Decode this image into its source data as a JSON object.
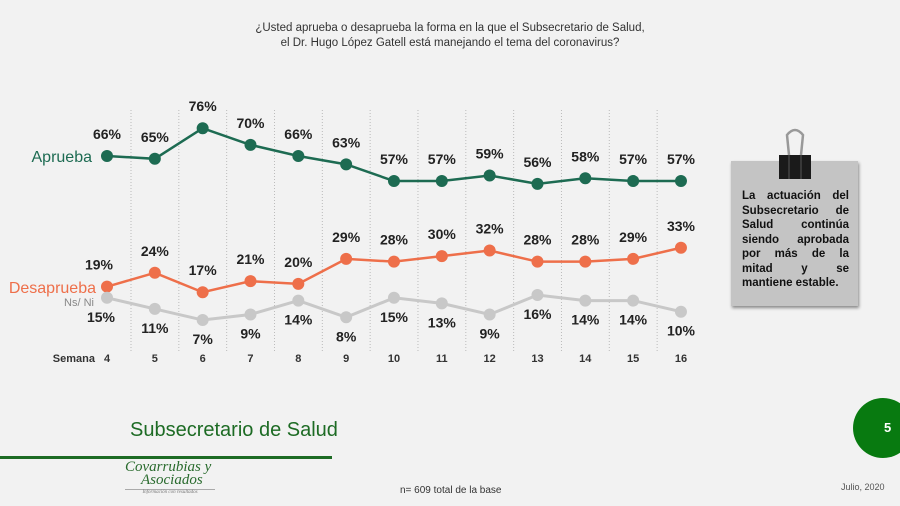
{
  "question": [
    "¿Usted aprueba o desaprueba la forma en la que el Subsecretario de Salud,",
    "el Dr. Hugo López Gatell está manejando el tema del coronavirus?"
  ],
  "chart_data": {
    "type": "line",
    "xlabel": "Semana",
    "categories": [
      "4",
      "5",
      "6",
      "7",
      "8",
      "9",
      "10",
      "11",
      "12",
      "13",
      "14",
      "15",
      "16"
    ],
    "series": [
      {
        "name": "Aprueba",
        "color": "#1d6b52",
        "values": [
          66,
          65,
          76,
          70,
          66,
          63,
          57,
          57,
          59,
          56,
          58,
          57,
          57
        ]
      },
      {
        "name": "Desaprueba",
        "color": "#ee6f4a",
        "values": [
          19,
          24,
          17,
          21,
          20,
          29,
          28,
          30,
          32,
          28,
          28,
          29,
          33
        ]
      },
      {
        "name": "Ns/ Ni",
        "color": "#c8c8c8",
        "values": [
          15,
          11,
          7,
          9,
          14,
          8,
          15,
          13,
          9,
          16,
          14,
          14,
          10
        ]
      }
    ],
    "value_suffix": "%",
    "grid": "vertical dotted"
  },
  "note": "La actuación del Subsecretario de Salud continúa siendo aprobada por más de la mitad y se mantiene estable.",
  "section_title": "Subsecretario de Salud",
  "page_number": "5",
  "sample": "n= 609 total de la base",
  "date": "Julio, 2020",
  "logo": {
    "line1": "Covarrubias y",
    "line2": "Asociados",
    "tagline": "Información con resultados"
  }
}
